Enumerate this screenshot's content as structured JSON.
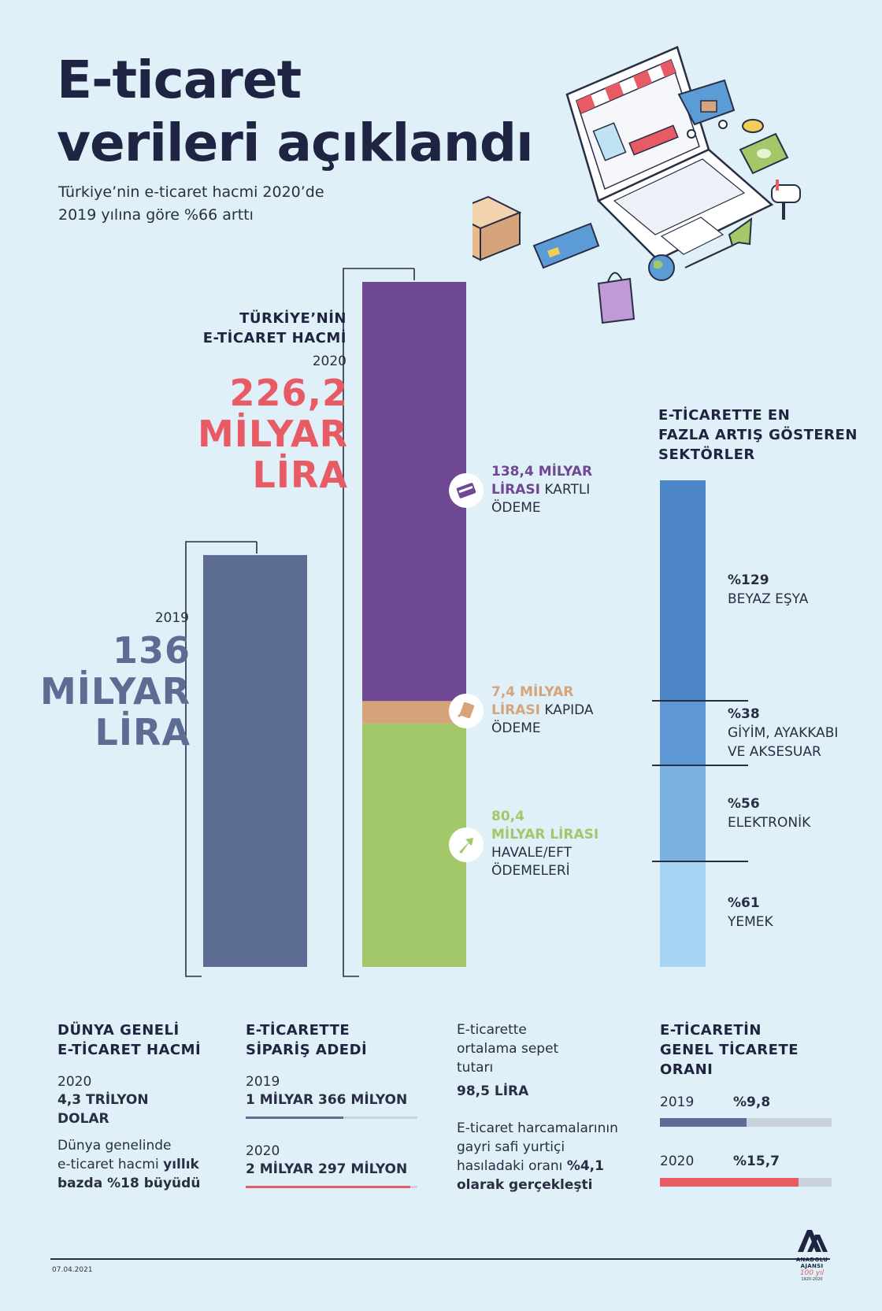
{
  "header": {
    "title_line1": "E-ticaret",
    "title_line2": "verileri açıklandı",
    "subtitle_line1": "Türkiye’nin e-ticaret hacmi 2020’de",
    "subtitle_line2": "2019 yılına göre %66 arttı"
  },
  "volume": {
    "label_line1": "TÜRKİYE’NİN",
    "label_line2": "E-TİCARET HACMİ",
    "year_2020": "2020",
    "value_2020_l1": "226,2",
    "value_2020_l2": "MİLYAR",
    "value_2020_l3": "LİRA",
    "year_2019": "2019",
    "value_2019_l1": "136",
    "value_2019_l2": "MİLYAR",
    "value_2019_l3": "LİRA"
  },
  "payments": {
    "card_l1": "138,4 MİLYAR",
    "card_l2a": "LİRASI",
    "card_l2b": " KARTLI",
    "card_l3": "ÖDEME",
    "door_l1": "7,4 MİLYAR",
    "door_l2a": "LİRASI",
    "door_l2b": " KAPIDA",
    "door_l3": "ÖDEME",
    "eft_l1": "80,4",
    "eft_l2": "MİLYAR LİRASI",
    "eft_l3": "HAVALE/EFT",
    "eft_l4": "ÖDEMELERİ"
  },
  "sectors": {
    "heading_l1": "E-TİCARETTE EN",
    "heading_l2": "FAZLA ARTIŞ GÖSTEREN",
    "heading_l3": "SEKTÖRLER",
    "items": [
      {
        "pct": "%129",
        "name_l1": "BEYAZ EŞYA",
        "name_l2": ""
      },
      {
        "pct": "%38",
        "name_l1": "GİYİM, AYAKKABI",
        "name_l2": "VE AKSESUAR"
      },
      {
        "pct": "%56",
        "name_l1": "ELEKTRONİK",
        "name_l2": ""
      },
      {
        "pct": "%61",
        "name_l1": "YEMEK",
        "name_l2": ""
      }
    ]
  },
  "world": {
    "heading_l1": "DÜNYA GENELİ",
    "heading_l2": "E-TİCARET HACMİ",
    "year": "2020",
    "value_l1": "4,3 TRİLYON",
    "value_l2": "DOLAR",
    "note_l1": "Dünya genelinde",
    "note_l2a": "e-ticaret hacmi ",
    "note_l2b": "yıllık",
    "note_l3": "bazda %18 büyüdü"
  },
  "orders": {
    "heading_l1": "E-TİCARETTE",
    "heading_l2": "SİPARİŞ ADEDİ",
    "year_2019": "2019",
    "value_2019": "1 MİLYAR 366 MİLYON",
    "year_2020": "2020",
    "value_2020": "2 MİLYAR 297 MİLYON"
  },
  "basket": {
    "l1": "E-ticarette",
    "l2": "ortalama sepet",
    "l3": "tutarı",
    "value": "98,5 LİRA",
    "gdp_l1": "E-ticaret harcamalarının",
    "gdp_l2": "gayri safi yurtiçi",
    "gdp_l3a": "hasıladaki oranı ",
    "gdp_l3b": "%4,1",
    "gdp_l4": "olarak gerçekleşti"
  },
  "ratio": {
    "heading_l1": "E-TİCARETİN",
    "heading_l2": "GENEL TİCARETE",
    "heading_l3": "ORANI",
    "year_2019": "2019",
    "value_2019": "%9,8",
    "year_2020": "2020",
    "value_2020": "%15,7"
  },
  "footer": {
    "date": "07.04.2021",
    "logo_l1": "ANADOLU AJANSI",
    "logo_l2": "100 yıl",
    "logo_l3": "1920-2020"
  },
  "colors": {
    "purple": "#6f4893",
    "tan": "#d6a47a",
    "green": "#a2c86a",
    "slate": "#5d6c92",
    "red": "#e85a64",
    "blue1": "#4d86c6",
    "blue2": "#5d97d4",
    "blue3": "#7bb2e2",
    "blue4": "#a7d5f3"
  },
  "chart_data": [
    {
      "type": "bar",
      "title": "TÜRKİYE’NİN E-TİCARET HACMİ",
      "categories": [
        "2019",
        "2020"
      ],
      "unit": "milyar lira",
      "values": [
        136,
        226.2
      ],
      "stack_2020": [
        {
          "name": "KARTLI ÖDEME",
          "value": 138.4
        },
        {
          "name": "KAPIDA ÖDEME",
          "value": 7.4
        },
        {
          "name": "HAVALE/EFT ÖDEMELERİ",
          "value": 80.4
        }
      ]
    },
    {
      "type": "bar",
      "title": "E-TİCARETTE EN FAZLA ARTIŞ GÖSTEREN SEKTÖRLER",
      "categories": [
        "BEYAZ EŞYA",
        "GİYİM, AYAKKABI VE AKSESUAR",
        "ELEKTRONİK",
        "YEMEK"
      ],
      "values": [
        129,
        38,
        56,
        61
      ],
      "unit": "%"
    },
    {
      "type": "bar",
      "title": "E-TİCARETTE SİPARİŞ ADEDİ",
      "categories": [
        "2019",
        "2020"
      ],
      "values": [
        1366,
        2297
      ],
      "unit": "milyon"
    },
    {
      "type": "bar",
      "title": "E-TİCARETİN GENEL TİCARETE ORANI",
      "categories": [
        "2019",
        "2020"
      ],
      "values": [
        9.8,
        15.7
      ],
      "unit": "%"
    }
  ]
}
